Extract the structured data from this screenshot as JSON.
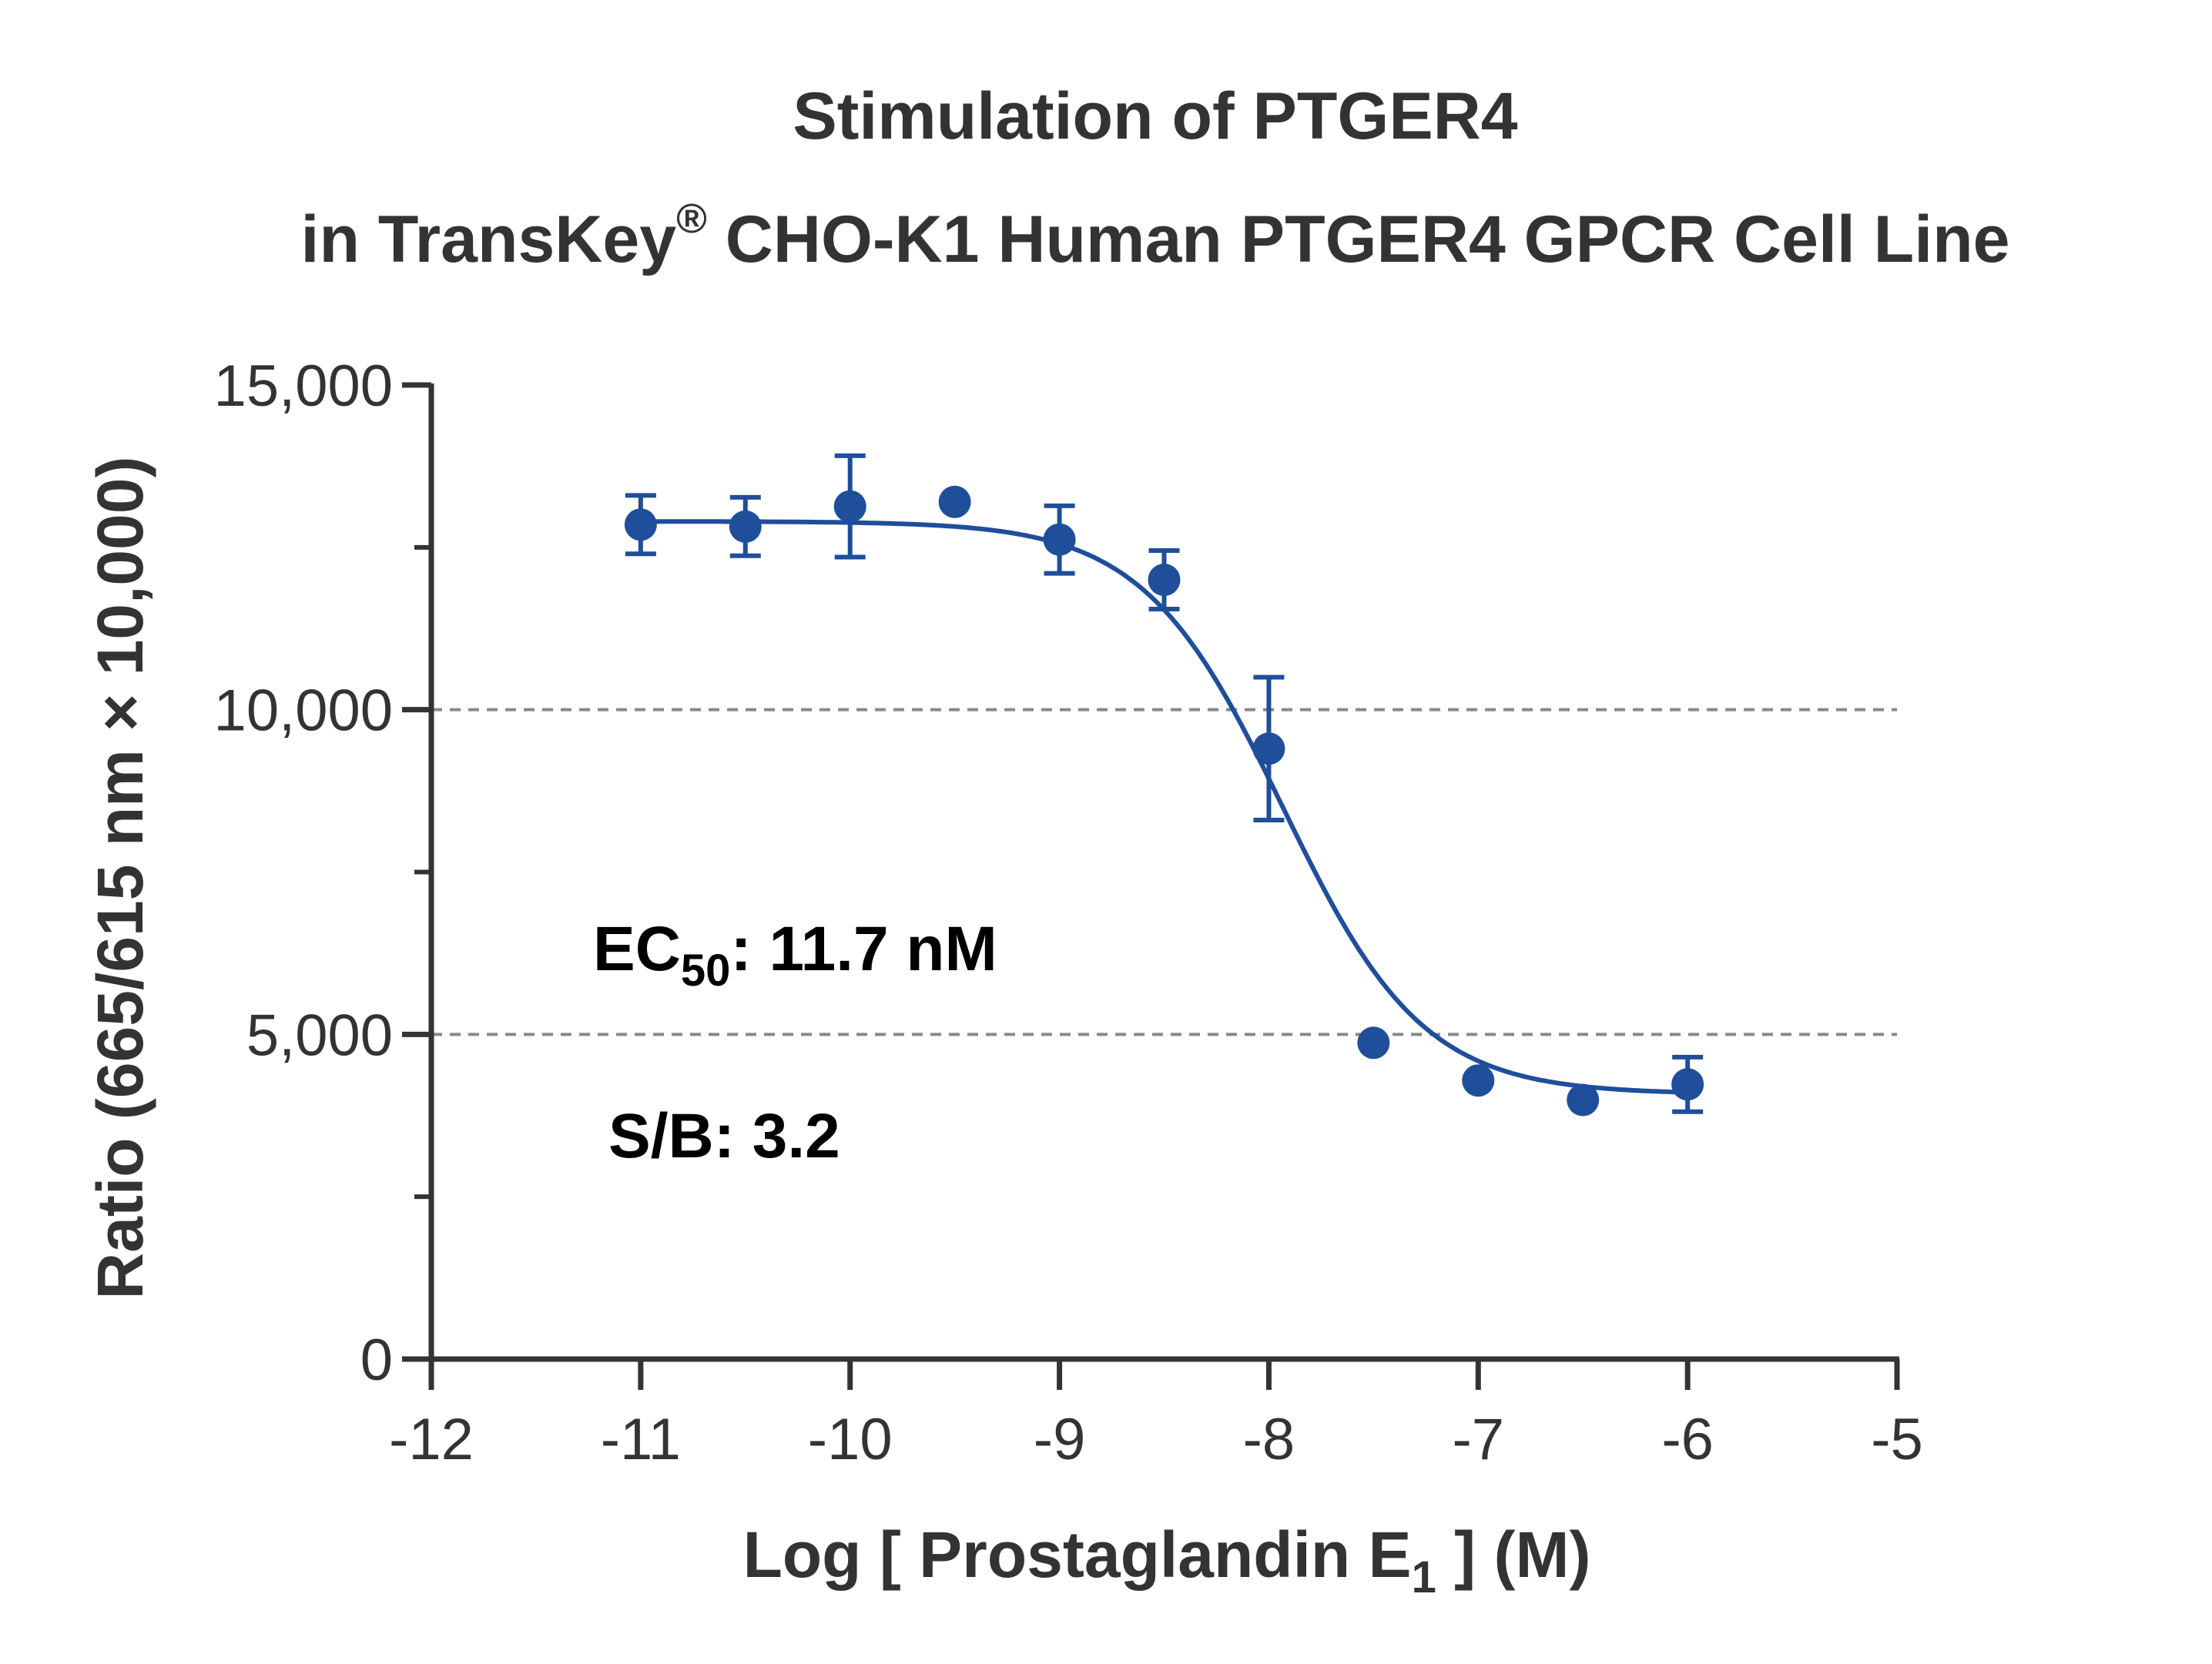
{
  "chart_data": {
    "type": "scatter",
    "title_line1": "Stimulation of  PTGER4",
    "title_line2_pre": "in TransKey",
    "title_line2_sup": "®",
    "title_line2_post": " CHO-K1 Human PTGER4 GPCR Cell Line",
    "xlabel_pre": "Log [ Prostaglandin E",
    "xlabel_sub": "1",
    "xlabel_post": " ]  (M)",
    "ylabel": "Ratio (665/615 nm × 10,000)",
    "xlim": [
      -12,
      -5
    ],
    "ylim": [
      0,
      15000
    ],
    "xticks": [
      -12,
      -11,
      -10,
      -9,
      -8,
      -7,
      -6,
      -5
    ],
    "xtick_labels": [
      "-12",
      "-11",
      "-10",
      "-9",
      "-8",
      "-7",
      "-6",
      "-5"
    ],
    "yticks": [
      0,
      5000,
      10000,
      15000
    ],
    "ytick_labels": [
      "0",
      "5,000",
      "10,000",
      "15,000"
    ],
    "y_minor_ticks": [
      2500,
      7500,
      12500
    ],
    "reference_lines": [
      5000,
      10000
    ],
    "color": "#1f4e9a",
    "points": [
      {
        "x": -11.0,
        "y": 12850,
        "err": 450
      },
      {
        "x": -10.5,
        "y": 12820,
        "err": 450
      },
      {
        "x": -10.0,
        "y": 13130,
        "err": 780
      },
      {
        "x": -9.5,
        "y": 13200,
        "err": 0
      },
      {
        "x": -9.0,
        "y": 12620,
        "err": 520
      },
      {
        "x": -8.5,
        "y": 12000,
        "err": 450
      },
      {
        "x": -8.0,
        "y": 9400,
        "err": 1100
      },
      {
        "x": -7.5,
        "y": 4870,
        "err": 0
      },
      {
        "x": -7.0,
        "y": 4290,
        "err": 0
      },
      {
        "x": -6.5,
        "y": 3990,
        "err": 0
      },
      {
        "x": -6.0,
        "y": 4230,
        "err": 420
      }
    ],
    "fit": {
      "top": 12900,
      "bottom": 4080,
      "log_ec50": -7.932,
      "hill": -1.3
    },
    "annotation_ec50_pre": "EC",
    "annotation_ec50_sub": "50",
    "annotation_ec50_post": ": 11.7 nM",
    "annotation_sb": "S/B: 3.2"
  }
}
